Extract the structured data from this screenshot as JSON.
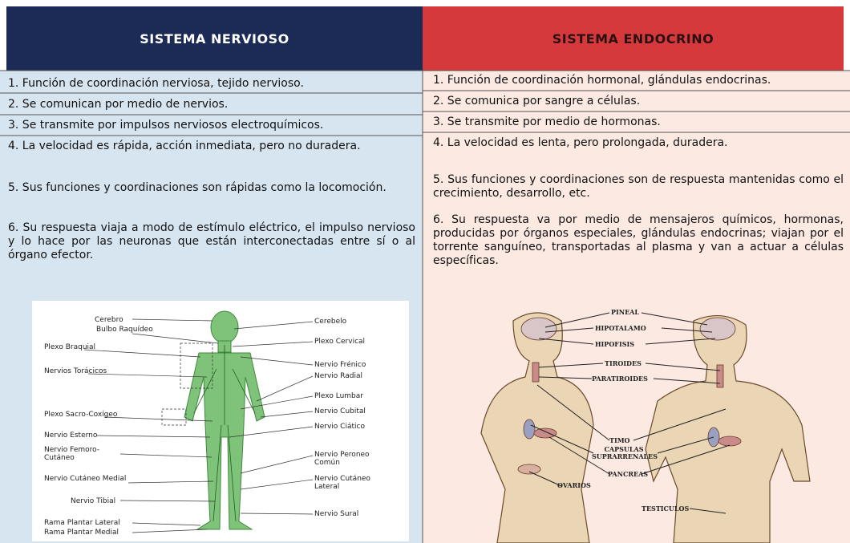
{
  "table": {
    "headers": [
      "SISTEMA NERVIOSO",
      "SISTEMA ENDOCRINO"
    ],
    "rows": [
      [
        "1. Función de coordinación nerviosa, tejido nervioso.",
        "1. Función de coordinación hormonal, glándulas endocrinas."
      ],
      [
        "2. Se comunican por medio de nervios.",
        "2. Se comunica por sangre a células."
      ],
      [
        "3. Se transmite por impulsos nerviosos electroquímicos.",
        "3. Se transmite por medio de hormonas."
      ],
      [
        "4. La velocidad es rápida, acción inmediata, pero no duradera.",
        "4. La velocidad es lenta, pero prolongada, duradera."
      ],
      [
        "5. Sus funciones y coordinaciones son rápidas como la locomoción.",
        "5. Sus funciones y coordinaciones son de respuesta mantenidas como el crecimiento, desarrollo, etc."
      ],
      [
        "6. Su respuesta viaja a modo de estímulo eléctrico, el impulso nervioso y lo hace por las neuronas que están interconectadas entre sí o al órgano efector.",
        "6. Su respuesta va por medio de mensajeros químicos, hormonas, producidas por órganos especiales, glándulas endocrinas; viajan por el torrente sanguíneo, transportadas al plasma y van a actuar a células específicas."
      ]
    ]
  },
  "figures": {
    "nervous": {
      "labels": [
        "Cerebro",
        "Bulbo Raquídeo",
        "Plexo Braquial",
        "Nervios Torácicos",
        "Plexo Sacro-Coxígeo",
        "Nervio Esterno",
        "Nervio Femoro-Cutáneo",
        "Nervio Cutáneo Medial",
        "Nervio Tibial",
        "Rama Plantar Lateral",
        "Rama Plantar Medial",
        "Cerebelo",
        "Plexo Cervical",
        "Nervio Frénico",
        "Nervio Radial",
        "Plexo Lumbar",
        "Nervio Cubital",
        "Nervio Ciático",
        "Nervio Peroneo Común",
        "Nervio Cutáneo Lateral",
        "Nervio Sural"
      ]
    },
    "endocrine": {
      "labels": [
        "PINEAL",
        "HIPOTALAMO",
        "HIPOFISIS",
        "TIROIDES",
        "PARATIROIDES",
        "TIMO",
        "CAPSULAS SUPRARRENALES",
        "PANCREAS",
        "OVARIOS",
        "TESTICULOS"
      ]
    }
  }
}
